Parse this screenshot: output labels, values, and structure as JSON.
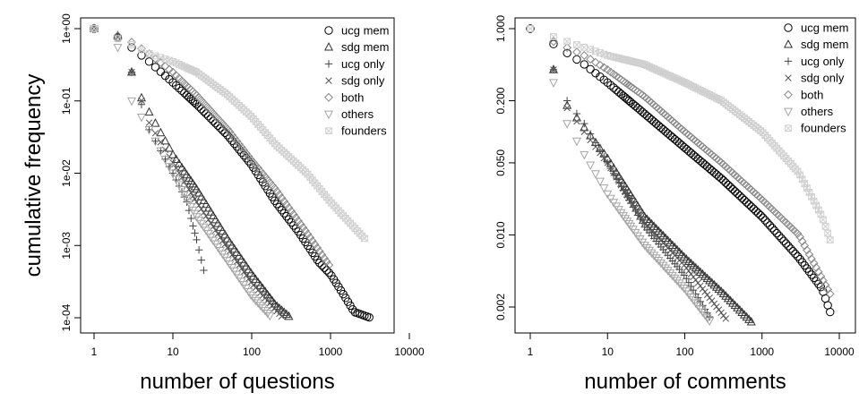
{
  "figure": {
    "ylabel": "cumulative frequency"
  },
  "chart_data": [
    {
      "type": "scatter",
      "xlabel": "number of questions",
      "ylabel": "cumulative frequency",
      "xscale": "log",
      "yscale": "log",
      "xlim": [
        1,
        10000
      ],
      "ylim": [
        0.0001,
        1
      ],
      "xticks": [
        {
          "v": 1,
          "label": "1"
        },
        {
          "v": 10,
          "label": "10"
        },
        {
          "v": 100,
          "label": "100"
        },
        {
          "v": 1000,
          "label": "1000"
        },
        {
          "v": 10000,
          "label": "10000"
        }
      ],
      "yticks": [
        {
          "v": 0.0001,
          "label": "1e-04"
        },
        {
          "v": 0.001,
          "label": "1e-03"
        },
        {
          "v": 0.01,
          "label": "1e-02"
        },
        {
          "v": 0.1,
          "label": "1e-01"
        },
        {
          "v": 1,
          "label": "1e+00"
        }
      ],
      "legend_position": "top-right",
      "series": [
        {
          "name": "ucg mem",
          "marker": "circle",
          "color": "#000000",
          "xmin": 1,
          "xmax": 3200,
          "alpha": 1.2,
          "points": [
            [
              1,
              1.0
            ],
            [
              2,
              0.75
            ],
            [
              3,
              0.55
            ],
            [
              5,
              0.35
            ],
            [
              10,
              0.18
            ],
            [
              20,
              0.09
            ],
            [
              50,
              0.033
            ],
            [
              100,
              0.013
            ],
            [
              200,
              0.004
            ],
            [
              400,
              0.0015
            ],
            [
              700,
              0.0006
            ],
            [
              1000,
              0.0004
            ],
            [
              1500,
              0.0002
            ],
            [
              2000,
              0.00012
            ],
            [
              3200,
              0.0001
            ]
          ]
        },
        {
          "name": "sdg mem",
          "marker": "triangle-up",
          "color": "#333333",
          "xmin": 1,
          "xmax": 310,
          "alpha": 1.95,
          "points": [
            [
              1,
              1.0
            ],
            [
              2,
              0.8
            ],
            [
              3,
              0.25
            ],
            [
              4,
              0.11
            ],
            [
              5,
              0.07
            ],
            [
              10,
              0.018
            ],
            [
              20,
              0.006
            ],
            [
              50,
              0.0012
            ],
            [
              100,
              0.0004
            ],
            [
              200,
              0.00015
            ],
            [
              310,
              0.0001
            ]
          ]
        },
        {
          "name": "ucg only",
          "marker": "plus",
          "color": "#444444",
          "xmin": 1,
          "xmax": 26,
          "alpha": 2.1,
          "points": [
            [
              1,
              1.0
            ],
            [
              2,
              0.8
            ],
            [
              3,
              0.25
            ],
            [
              5,
              0.04
            ],
            [
              10,
              0.01
            ],
            [
              15,
              0.004
            ],
            [
              20,
              0.0012
            ],
            [
              26,
              0.00035
            ]
          ]
        },
        {
          "name": "sdg only",
          "marker": "cross",
          "color": "#555555",
          "xmin": 1,
          "xmax": 250,
          "alpha": 1.95,
          "points": [
            [
              1,
              1.0
            ],
            [
              2,
              0.75
            ],
            [
              3,
              0.25
            ],
            [
              5,
              0.05
            ],
            [
              10,
              0.014
            ],
            [
              20,
              0.004
            ],
            [
              50,
              0.0009
            ],
            [
              100,
              0.0003
            ],
            [
              250,
              0.0001
            ]
          ]
        },
        {
          "name": "both",
          "marker": "diamond",
          "color": "#888888",
          "xmin": 1,
          "xmax": 1000,
          "alpha": 1.2,
          "points": [
            [
              1,
              1.0
            ],
            [
              2,
              0.8
            ],
            [
              3,
              0.65
            ],
            [
              5,
              0.45
            ],
            [
              10,
              0.25
            ],
            [
              20,
              0.12
            ],
            [
              50,
              0.04
            ],
            [
              100,
              0.015
            ],
            [
              200,
              0.006
            ],
            [
              500,
              0.0015
            ],
            [
              1000,
              0.0005
            ]
          ]
        },
        {
          "name": "others",
          "marker": "triangle-down",
          "color": "#a6a6a6",
          "xmin": 1,
          "xmax": 180,
          "alpha": 2.2,
          "points": [
            [
              1,
              1.0
            ],
            [
              2,
              0.55
            ],
            [
              3,
              0.1
            ],
            [
              5,
              0.04
            ],
            [
              10,
              0.01
            ],
            [
              20,
              0.0025
            ],
            [
              50,
              0.0006
            ],
            [
              100,
              0.0002
            ],
            [
              180,
              0.0001
            ]
          ]
        },
        {
          "name": "founders",
          "marker": "square-x",
          "color": "#cfcfcf",
          "xmin": 1,
          "xmax": 2800,
          "alpha": 0.9,
          "points": [
            [
              1,
              1.0
            ],
            [
              3,
              0.6
            ],
            [
              5,
              0.45
            ],
            [
              10,
              0.35
            ],
            [
              20,
              0.25
            ],
            [
              50,
              0.12
            ],
            [
              100,
              0.06
            ],
            [
              200,
              0.025
            ],
            [
              500,
              0.01
            ],
            [
              1000,
              0.004
            ],
            [
              1800,
              0.002
            ],
            [
              2800,
              0.0012
            ]
          ]
        }
      ]
    },
    {
      "type": "scatter",
      "xlabel": "number of comments",
      "ylabel": "",
      "xscale": "log",
      "yscale": "log",
      "xlim": [
        1,
        10000
      ],
      "ylim": [
        0.0014,
        1
      ],
      "xticks": [
        {
          "v": 1,
          "label": "1"
        },
        {
          "v": 10,
          "label": "10"
        },
        {
          "v": 100,
          "label": "100"
        },
        {
          "v": 1000,
          "label": "1000"
        },
        {
          "v": 10000,
          "label": "10000"
        }
      ],
      "yticks": [
        {
          "v": 0.002,
          "label": "0.002"
        },
        {
          "v": 0.01,
          "label": "0.010"
        },
        {
          "v": 0.05,
          "label": "0.050"
        },
        {
          "v": 0.2,
          "label": "0.200"
        },
        {
          "v": 1,
          "label": "1.000"
        }
      ],
      "legend_position": "top-right",
      "series": [
        {
          "name": "ucg mem",
          "marker": "circle",
          "color": "#000000",
          "xmin": 1,
          "xmax": 8000,
          "alpha": 0.75,
          "points": [
            [
              1,
              1.0
            ],
            [
              5,
              0.45
            ],
            [
              10,
              0.3
            ],
            [
              30,
              0.15
            ],
            [
              100,
              0.07
            ],
            [
              300,
              0.035
            ],
            [
              1000,
              0.015
            ],
            [
              3000,
              0.006
            ],
            [
              6000,
              0.003
            ],
            [
              8000,
              0.0016
            ]
          ]
        },
        {
          "name": "sdg mem",
          "marker": "triangle-up",
          "color": "#333333",
          "xmin": 2,
          "xmax": 750,
          "alpha": 1.5,
          "points": [
            [
              2,
              0.4
            ],
            [
              3,
              0.18
            ],
            [
              5,
              0.11
            ],
            [
              10,
              0.055
            ],
            [
              30,
              0.015
            ],
            [
              100,
              0.006
            ],
            [
              300,
              0.0028
            ],
            [
              750,
              0.0014
            ]
          ]
        },
        {
          "name": "ucg only",
          "marker": "plus",
          "color": "#444444",
          "xmin": 2,
          "xmax": 210,
          "alpha": 1.55,
          "points": [
            [
              2,
              0.4
            ],
            [
              3,
              0.2
            ],
            [
              5,
              0.12
            ],
            [
              10,
              0.05
            ],
            [
              30,
              0.012
            ],
            [
              100,
              0.004
            ],
            [
              210,
              0.0016
            ]
          ]
        },
        {
          "name": "sdg only",
          "marker": "cross",
          "color": "#555555",
          "xmin": 2,
          "xmax": 350,
          "alpha": 1.45,
          "points": [
            [
              2,
              0.4
            ],
            [
              3,
              0.17
            ],
            [
              5,
              0.1
            ],
            [
              10,
              0.05
            ],
            [
              30,
              0.013
            ],
            [
              100,
              0.005
            ],
            [
              350,
              0.0015
            ]
          ]
        },
        {
          "name": "both",
          "marker": "diamond",
          "color": "#888888",
          "xmin": 2,
          "xmax": 8000,
          "alpha": 0.72,
          "points": [
            [
              2,
              0.75
            ],
            [
              5,
              0.55
            ],
            [
              10,
              0.4
            ],
            [
              30,
              0.22
            ],
            [
              100,
              0.1
            ],
            [
              300,
              0.05
            ],
            [
              1000,
              0.022
            ],
            [
              3000,
              0.01
            ],
            [
              8000,
              0.0025
            ]
          ]
        },
        {
          "name": "others",
          "marker": "triangle-down",
          "color": "#a6a6a6",
          "xmin": 2,
          "xmax": 220,
          "alpha": 1.7,
          "points": [
            [
              2,
              0.3
            ],
            [
              3,
              0.12
            ],
            [
              5,
              0.06
            ],
            [
              10,
              0.025
            ],
            [
              30,
              0.008
            ],
            [
              100,
              0.003
            ],
            [
              220,
              0.0014
            ]
          ]
        },
        {
          "name": "founders",
          "marker": "square-x",
          "color": "#cfcfcf",
          "xmin": 1,
          "xmax": 8000,
          "alpha": 0.6,
          "points": [
            [
              1,
              1.0
            ],
            [
              10,
              0.55
            ],
            [
              30,
              0.45
            ],
            [
              100,
              0.3
            ],
            [
              300,
              0.2
            ],
            [
              1000,
              0.1
            ],
            [
              3000,
              0.04
            ],
            [
              6000,
              0.015
            ],
            [
              8000,
              0.008
            ]
          ]
        }
      ]
    }
  ]
}
